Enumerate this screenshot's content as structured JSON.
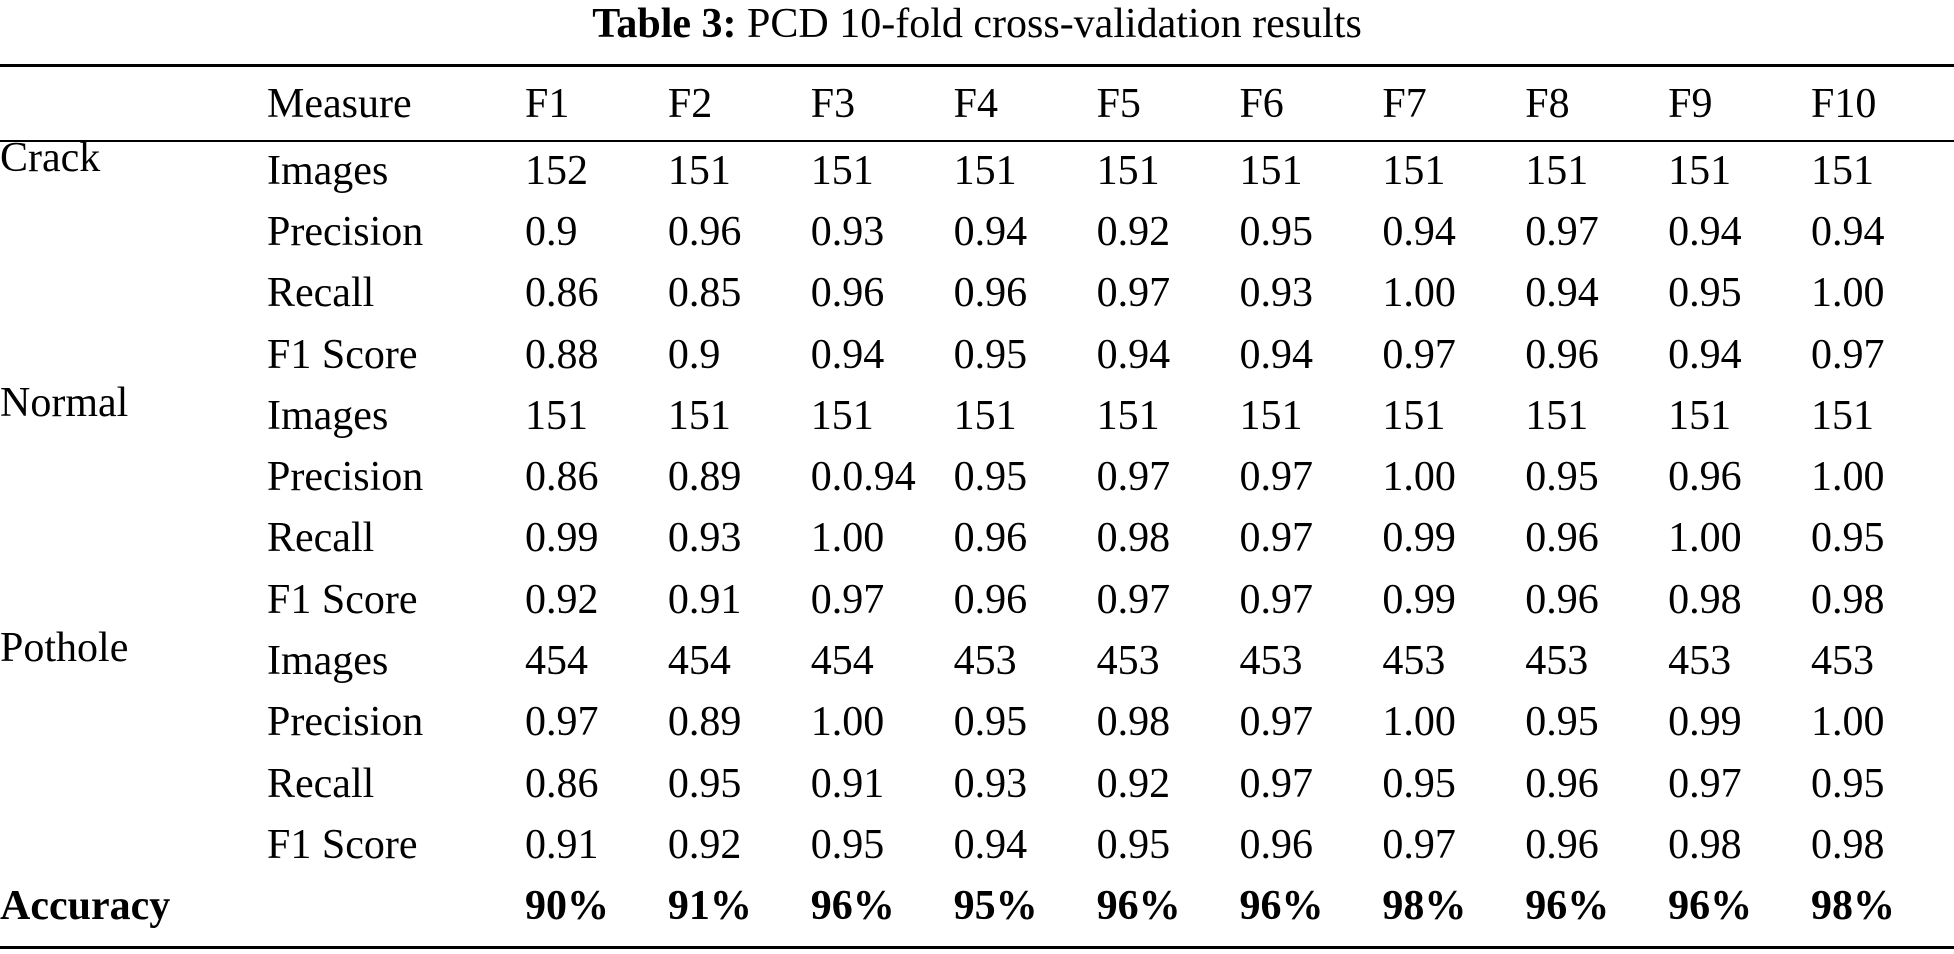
{
  "caption": {
    "label": "Table 3:",
    "text": "PCD 10-fold cross-validation results"
  },
  "columns": [
    "",
    "Measure",
    "F1",
    "F2",
    "F3",
    "F4",
    "F5",
    "F6",
    "F7",
    "F8",
    "F9",
    "F10"
  ],
  "rows": [
    {
      "group": "Crack",
      "measure": "Images",
      "values": [
        "152",
        "151",
        "151",
        "151",
        "151",
        "151",
        "151",
        "151",
        "151",
        "151"
      ]
    },
    {
      "group": "",
      "measure": "Precision",
      "values": [
        "0.9",
        "0.96",
        "0.93",
        "0.94",
        "0.92",
        "0.95",
        "0.94",
        "0.97",
        "0.94",
        "0.94"
      ]
    },
    {
      "group": "",
      "measure": "Recall",
      "values": [
        "0.86",
        "0.85",
        "0.96",
        "0.96",
        "0.97",
        "0.93",
        "1.00",
        "0.94",
        "0.95",
        "1.00"
      ]
    },
    {
      "group": "",
      "measure": "F1 Score",
      "values": [
        "0.88",
        "0.9",
        "0.94",
        "0.95",
        "0.94",
        "0.94",
        "0.97",
        "0.96",
        "0.94",
        "0.97"
      ]
    },
    {
      "group": "Normal",
      "measure": "Images",
      "values": [
        "151",
        "151",
        "151",
        "151",
        "151",
        "151",
        "151",
        "151",
        "151",
        "151"
      ]
    },
    {
      "group": "",
      "measure": "Precision",
      "values": [
        "0.86",
        "0.89",
        "0.0.94",
        "0.95",
        "0.97",
        "0.97",
        "1.00",
        "0.95",
        "0.96",
        "1.00"
      ]
    },
    {
      "group": "",
      "measure": "Recall",
      "values": [
        "0.99",
        "0.93",
        "1.00",
        "0.96",
        "0.98",
        "0.97",
        "0.99",
        "0.96",
        "1.00",
        "0.95"
      ]
    },
    {
      "group": "",
      "measure": "F1 Score",
      "values": [
        "0.92",
        "0.91",
        "0.97",
        "0.96",
        "0.97",
        "0.97",
        "0.99",
        "0.96",
        "0.98",
        "0.98"
      ]
    },
    {
      "group": "Pothole",
      "measure": "Images",
      "values": [
        "454",
        "454",
        "454",
        "453",
        "453",
        "453",
        "453",
        "453",
        "453",
        "453"
      ]
    },
    {
      "group": "",
      "measure": "Precision",
      "values": [
        "0.97",
        "0.89",
        "1.00",
        "0.95",
        "0.98",
        "0.97",
        "1.00",
        "0.95",
        "0.99",
        "1.00"
      ]
    },
    {
      "group": "",
      "measure": "Recall",
      "values": [
        "0.86",
        "0.95",
        "0.91",
        "0.93",
        "0.92",
        "0.97",
        "0.95",
        "0.96",
        "0.97",
        "0.95"
      ]
    },
    {
      "group": "",
      "measure": "F1 Score",
      "values": [
        "0.91",
        "0.92",
        "0.95",
        "0.94",
        "0.95",
        "0.96",
        "0.97",
        "0.96",
        "0.98",
        "0.98"
      ]
    }
  ],
  "accuracy": {
    "label": "Accuracy",
    "values": [
      "90%",
      "91%",
      "96%",
      "95%",
      "96%",
      "96%",
      "98%",
      "96%",
      "96%",
      "98%"
    ]
  }
}
